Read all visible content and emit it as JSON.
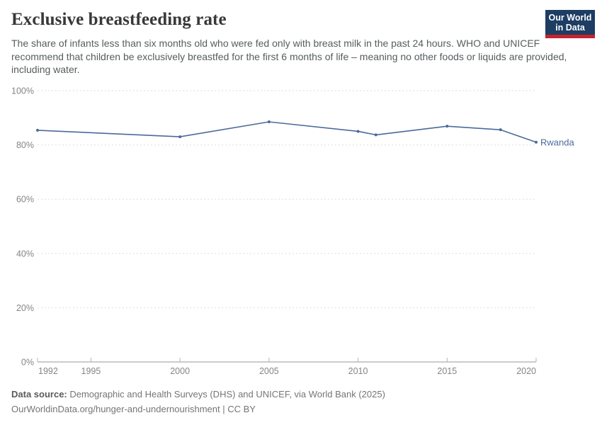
{
  "header": {
    "title": "Exclusive breastfeeding rate",
    "subtitle": "The share of infants less than six months old who were fed only with breast milk in the past 24 hours. WHO and UNICEF recommend that children be exclusively breastfed for the first 6 months of life – meaning no other foods or liquids are provided, including water."
  },
  "logo": {
    "line1": "Our World",
    "line2": "in Data",
    "bg_color": "#1d3d63",
    "bar_color": "#c5232d"
  },
  "chart_data": {
    "type": "line",
    "title": "Exclusive breastfeeding rate",
    "series": [
      {
        "name": "Rwanda",
        "color": "#4C6A9C",
        "points": [
          {
            "year": 1992,
            "value": 85.4
          },
          {
            "year": 2000,
            "value": 83.0
          },
          {
            "year": 2005,
            "value": 88.5
          },
          {
            "year": 2010,
            "value": 85.0
          },
          {
            "year": 2011,
            "value": 83.7
          },
          {
            "year": 2015,
            "value": 86.9
          },
          {
            "year": 2018,
            "value": 85.6
          },
          {
            "year": 2020,
            "value": 81.0
          }
        ]
      }
    ],
    "entity_label": "Rwanda",
    "x_axis": {
      "min": 1992,
      "max": 2020,
      "ticks": [
        1992,
        1995,
        2000,
        2005,
        2010,
        2015,
        2020
      ]
    },
    "y_axis": {
      "min": 0,
      "max": 100,
      "ticks": [
        0,
        20,
        40,
        60,
        80,
        100
      ],
      "unit": "%"
    },
    "grid": "dashed horizontal",
    "legend_position": "end-of-line label",
    "colors": {
      "line": "#4C6A9C",
      "grid": "#dedede",
      "axis": "#999999",
      "tick_label": "#858585"
    }
  },
  "footer": {
    "source_label": "Data source:",
    "source_text": " Demographic and Health Surveys (DHS) and UNICEF, via World Bank (2025)",
    "license_line": "OurWorldinData.org/hunger-and-undernourishment | CC BY"
  }
}
